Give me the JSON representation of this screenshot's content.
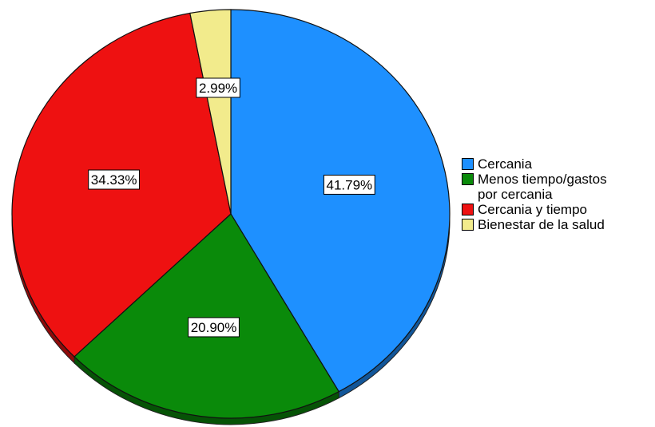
{
  "chart_data": {
    "type": "pie",
    "categories": [
      "Cercania",
      "Menos tiempo/gastos\npor cercania",
      "Cercania y tiempo",
      "Bienestar de la salud"
    ],
    "values": [
      41.79,
      20.9,
      34.33,
      2.99
    ],
    "data_labels": [
      "41.79%",
      "20.90%",
      "34.33%",
      "2.99%"
    ],
    "colors": [
      "#1E90FF",
      "#0A8A0A",
      "#EE1111",
      "#F2EB8C"
    ],
    "start": "12 o'clock",
    "direction": "clockwise",
    "legend_position": "right"
  }
}
